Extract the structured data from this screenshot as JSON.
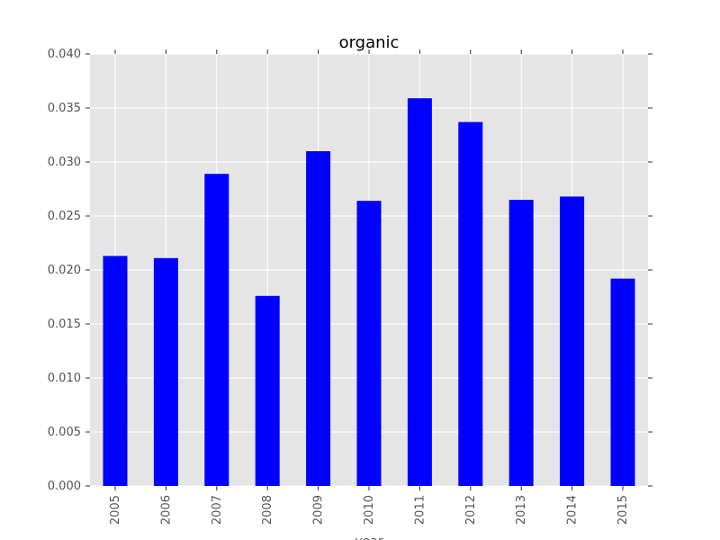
{
  "chart_data": {
    "type": "bar",
    "title": "organic",
    "xlabel": "year",
    "ylabel": "",
    "categories": [
      "2005",
      "2006",
      "2007",
      "2008",
      "2009",
      "2010",
      "2011",
      "2012",
      "2013",
      "2014",
      "2015"
    ],
    "values": [
      0.0213,
      0.0211,
      0.0289,
      0.0176,
      0.031,
      0.0264,
      0.0359,
      0.0337,
      0.0265,
      0.0268,
      0.0192
    ],
    "ylim": [
      0,
      0.04
    ],
    "yticks": [
      "0.000",
      "0.005",
      "0.010",
      "0.015",
      "0.020",
      "0.025",
      "0.030",
      "0.035",
      "0.040"
    ],
    "grid": true,
    "legend": "none",
    "colors": {
      "bar": "#0000ff",
      "plot_background": "#e5e5e5",
      "grid": "#ffffff",
      "tick_text": "#555555"
    }
  }
}
